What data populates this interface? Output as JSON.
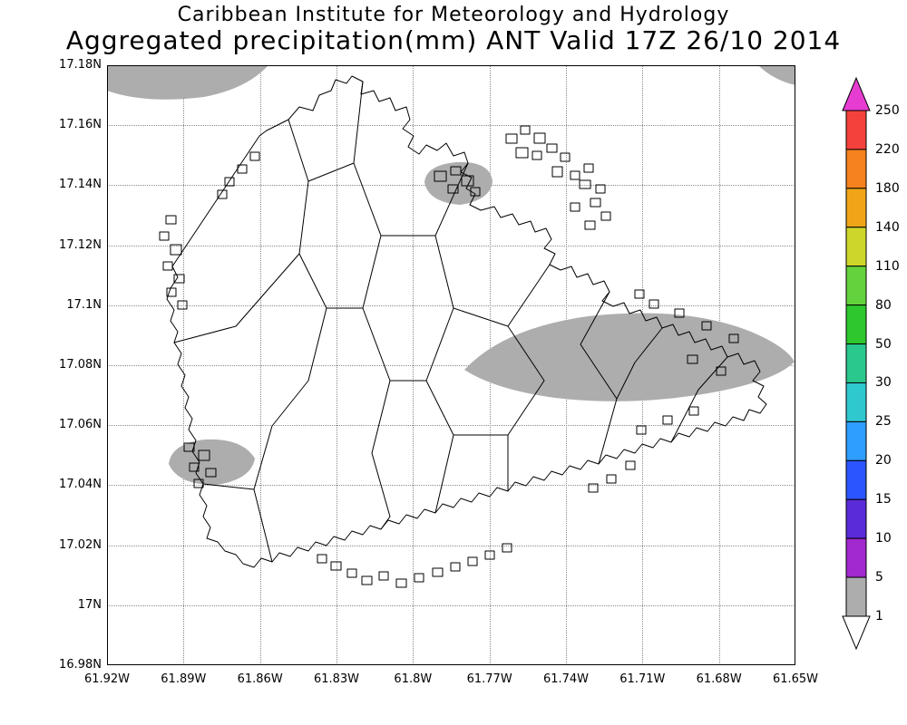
{
  "header": {
    "title_line1": "Caribbean Institute for Meteorology and Hydrology",
    "title_line2": "Aggregated precipitation(mm) ANT Valid 17Z 26/10 2014"
  },
  "axes": {
    "y_ticks": [
      "17.18N",
      "17.16N",
      "17.14N",
      "17.12N",
      "17.1N",
      "17.08N",
      "17.06N",
      "17.04N",
      "17.02N",
      "17N",
      "16.98N"
    ],
    "x_ticks": [
      "61.92W",
      "61.89W",
      "61.86W",
      "61.83W",
      "61.8W",
      "61.77W",
      "61.74W",
      "61.71W",
      "61.68W",
      "61.65W"
    ]
  },
  "colorbar": {
    "labels_top_to_bottom": [
      "250",
      "220",
      "180",
      "140",
      "110",
      "80",
      "50",
      "30",
      "25",
      "20",
      "15",
      "10",
      "5",
      "1"
    ],
    "colors_top_to_bottom": [
      "#e63cd2",
      "#f5413c",
      "#f5821e",
      "#f0a519",
      "#cdd72b",
      "#64d23c",
      "#2ec82e",
      "#2bc88e",
      "#2fc8cf",
      "#2e9fff",
      "#2b55ff",
      "#5a2bd9",
      "#a228cf",
      "#adadad",
      "#ffffff"
    ]
  },
  "map": {
    "background": "#ffffff",
    "coast_color": "#000000",
    "shade_color": "#adadad"
  },
  "chart_data": {
    "type": "heatmap",
    "title": "Aggregated precipitation(mm) ANT Valid 17Z 26/10 2014",
    "x_range_deg_w": [
      61.92,
      61.65
    ],
    "y_range_deg_n": [
      16.98,
      17.18
    ],
    "colorbar_levels_mm": [
      1,
      5,
      10,
      15,
      20,
      25,
      30,
      50,
      80,
      110,
      140,
      180,
      220,
      250
    ]
  }
}
